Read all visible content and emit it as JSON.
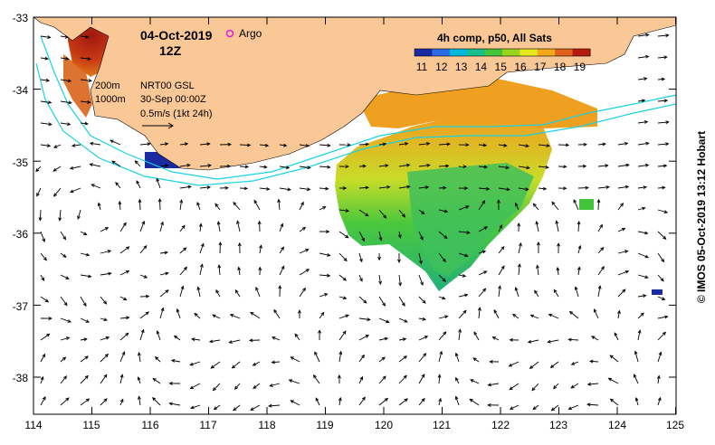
{
  "map": {
    "date": "04-Oct-2019",
    "time": "12Z",
    "argo_label": "Argo",
    "composite_label": "4h comp, p50, All Sats",
    "colorbar_ticks": [
      "11",
      "12",
      "13",
      "14",
      "15",
      "16",
      "17",
      "18",
      "19"
    ],
    "colorbar_colors": [
      "#1a2aa0",
      "#2e6ae6",
      "#00b8d8",
      "#17c08a",
      "#43c43a",
      "#9ad41e",
      "#e6e61a",
      "#f2a81a",
      "#e0601a",
      "#b81a10"
    ],
    "isobath_200": "200m",
    "isobath_1000": "1000m",
    "source": "NRT00 GSL",
    "analysis_time": "30-Sep 00:00Z",
    "vector_scale": "0.5m/s (1kt 24h)",
    "credit": "© IMOS 05-Oct-2019 13:12 Hobart",
    "x_ticks": [
      "114",
      "115",
      "116",
      "117",
      "118",
      "119",
      "120",
      "121",
      "122",
      "123",
      "124",
      "125"
    ],
    "y_ticks": [
      "-33",
      "-34",
      "-35",
      "-36",
      "-37",
      "-38"
    ],
    "land_color": "#fac896",
    "isobath_color": "#19d2e6",
    "argo_color": "#e020e0"
  }
}
